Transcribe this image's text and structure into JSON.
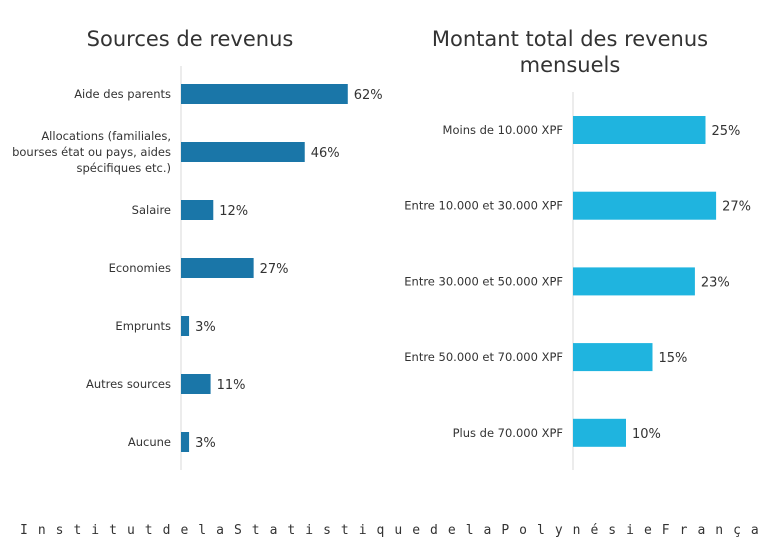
{
  "chart_data": [
    {
      "type": "bar",
      "orientation": "horizontal",
      "title": "Sources de revenus",
      "categories": [
        "Aide des parents",
        "Allocations (familiales, bourses état ou pays, aides spécifiques etc.)",
        "Salaire",
        "Economies",
        "Emprunts",
        "Autres sources",
        "Aucune"
      ],
      "category_lines": [
        [
          "Aide des parents"
        ],
        [
          "Allocations (familiales,",
          "bourses état ou pays, aides",
          "spécifiques etc.)"
        ],
        [
          "Salaire"
        ],
        [
          "Economies"
        ],
        [
          "Emprunts"
        ],
        [
          "Autres sources"
        ],
        [
          "Aucune"
        ]
      ],
      "values": [
        62,
        46,
        12,
        27,
        3,
        11,
        3
      ],
      "data_labels": [
        "62%",
        "46%",
        "12%",
        "27%",
        "3%",
        "11%",
        "3%"
      ],
      "unit": "%",
      "color": "#1a76a8",
      "grid": false
    },
    {
      "type": "bar",
      "orientation": "horizontal",
      "title": "Montant total des revenus mensuels",
      "title_lines": [
        "Montant total des revenus",
        "mensuels"
      ],
      "categories": [
        "Moins de 10.000 XPF",
        "Entre 10.000 et 30.000 XPF",
        "Entre 30.000 et 50.000 XPF",
        "Entre 50.000 et 70.000 XPF",
        "Plus de 70.000 XPF"
      ],
      "values": [
        25,
        27,
        23,
        15,
        10
      ],
      "data_labels": [
        "25%",
        "27%",
        "23%",
        "15%",
        "10%"
      ],
      "unit": "%",
      "color": "#1fb4df",
      "grid": false
    }
  ],
  "footer": [
    "Institut",
    "de",
    "la",
    "Statistique",
    "de",
    "la",
    "Polynésie",
    "Française"
  ]
}
